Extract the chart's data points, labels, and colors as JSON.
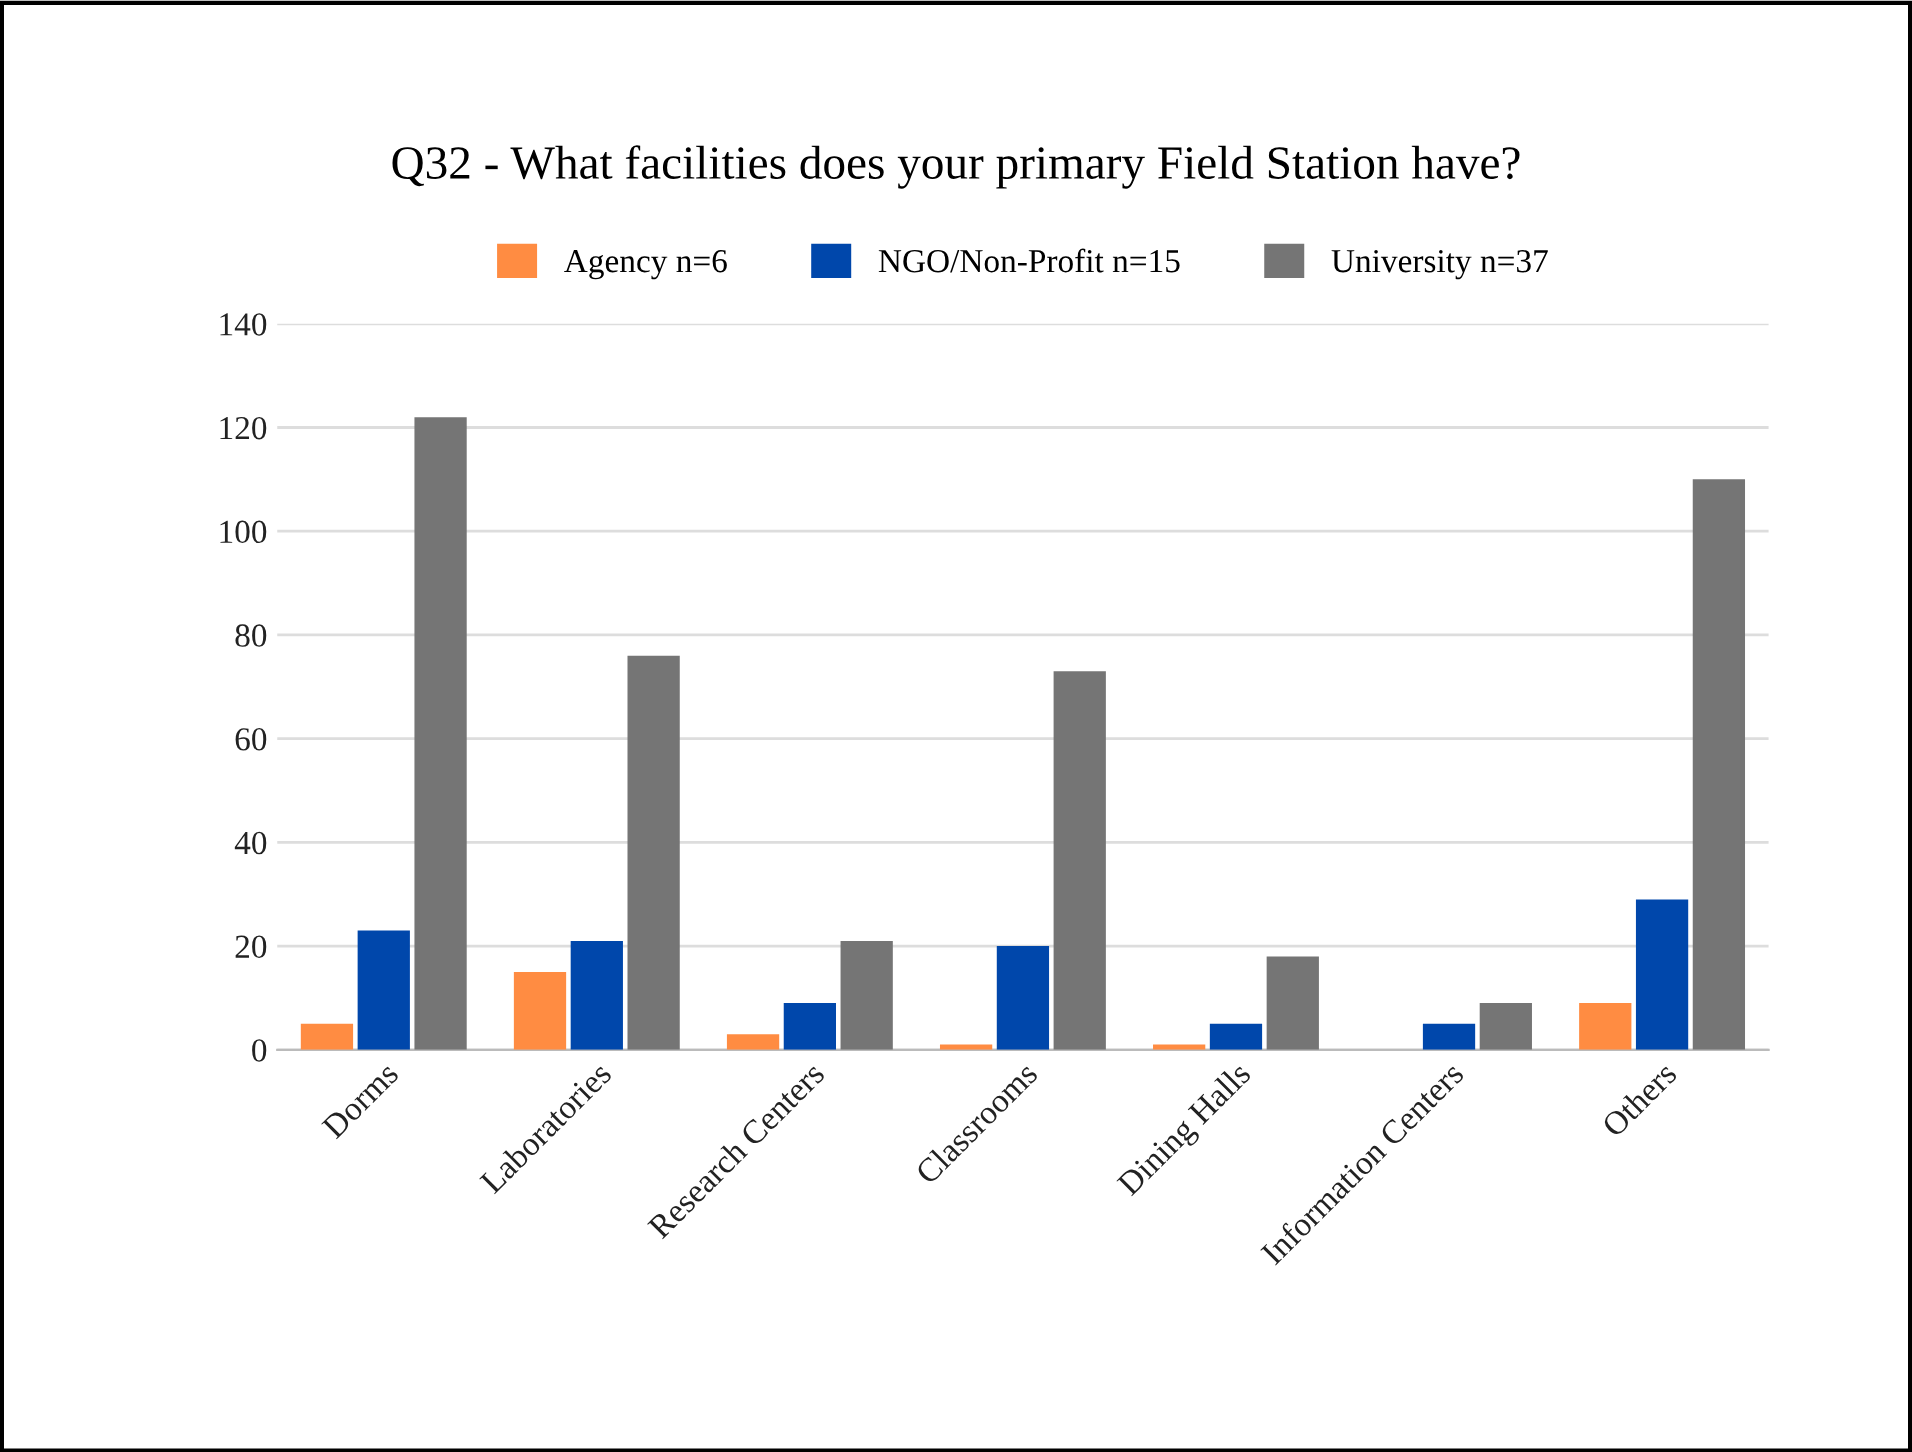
{
  "chart_data": {
    "type": "bar",
    "title": "Q32 - What facilities does your primary Field Station have?",
    "categories": [
      "Dorms",
      "Laboratories",
      "Research Centers",
      "Classrooms",
      "Dining Halls",
      "Information Centers",
      "Others"
    ],
    "series": [
      {
        "name": "Agency n=6",
        "color": "#ff8c42",
        "values": [
          5,
          15,
          3,
          1,
          1,
          0,
          9
        ]
      },
      {
        "name": "NGO/Non-Profit n=15",
        "color": "#0047ab",
        "values": [
          23,
          21,
          9,
          20,
          5,
          5,
          29
        ]
      },
      {
        "name": "University n=37",
        "color": "#757575",
        "values": [
          122,
          76,
          21,
          73,
          18,
          9,
          110
        ]
      }
    ],
    "ylim": [
      0,
      140
    ],
    "yticks": [
      0,
      20,
      40,
      60,
      80,
      100,
      120,
      140
    ],
    "grid": "y",
    "legend": "top"
  }
}
